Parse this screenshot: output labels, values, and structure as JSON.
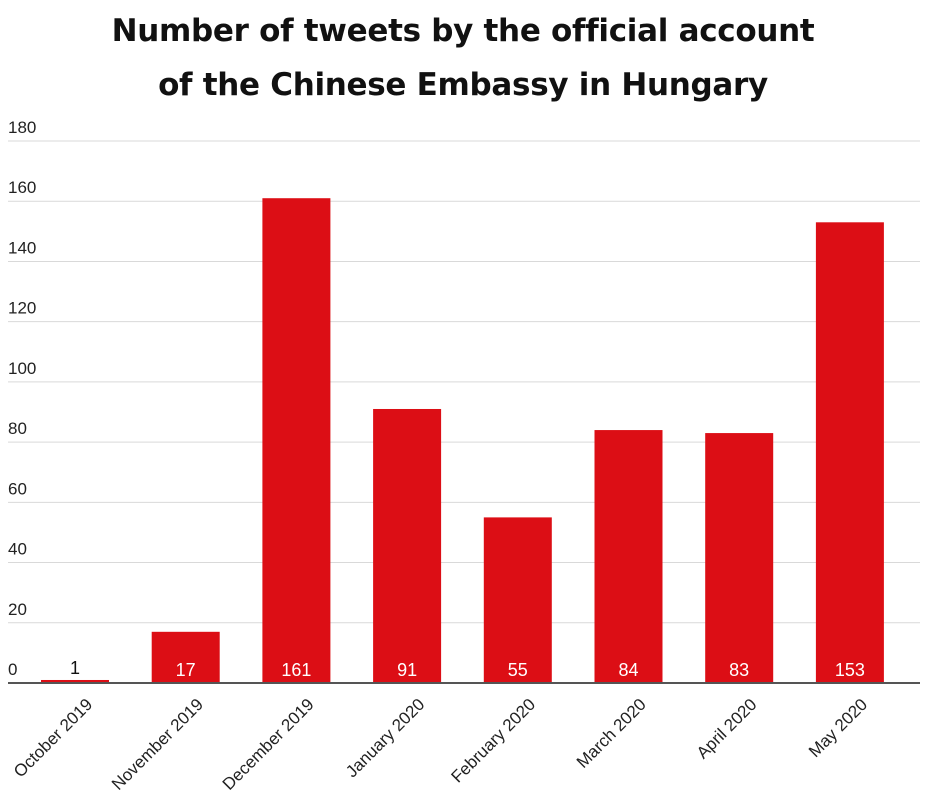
{
  "colors": {
    "bar": "#dc0e15",
    "grid": "#d9d9d9",
    "axis": "#555555",
    "label_inside": "#ffffff",
    "label_outside": "#111111"
  },
  "chart_data": {
    "type": "bar",
    "title_lines": [
      "Number of tweets by the official account",
      "of the Chinese Embassy in Hungary"
    ],
    "title": "Number of tweets by the official account of the Chinese Embassy in Hungary",
    "xlabel": "",
    "ylabel": "",
    "categories": [
      "October 2019",
      "November 2019",
      "December 2019",
      "January 2020",
      "February 2020",
      "March 2020",
      "April 2020",
      "May 2020"
    ],
    "values": [
      1,
      17,
      161,
      91,
      55,
      84,
      83,
      153
    ],
    "data_labels": [
      "1",
      "17",
      "161",
      "91",
      "55",
      "84",
      "83",
      "153"
    ],
    "ylim": [
      0,
      180
    ],
    "yticks": [
      0,
      20,
      40,
      60,
      80,
      100,
      120,
      140,
      160,
      180
    ],
    "grid": true,
    "legend": "none"
  }
}
